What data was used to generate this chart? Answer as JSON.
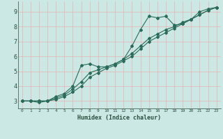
{
  "xlabel": "Humidex (Indice chaleur)",
  "bg_color": "#cce8e4",
  "grid_color": "#e8b0b0",
  "line_color": "#2a6b5a",
  "axis_color": "#2a5040",
  "xlim": [
    -0.5,
    23.5
  ],
  "ylim": [
    2.5,
    9.7
  ],
  "xticks": [
    0,
    1,
    2,
    3,
    4,
    5,
    6,
    7,
    8,
    9,
    10,
    11,
    12,
    13,
    14,
    15,
    16,
    17,
    18,
    19,
    20,
    21,
    22,
    23
  ],
  "yticks": [
    3,
    4,
    5,
    6,
    7,
    8,
    9
  ],
  "line1_x": [
    0,
    1,
    2,
    3,
    4,
    5,
    6,
    7,
    8,
    9,
    10,
    11,
    12,
    13,
    14,
    15,
    16,
    17,
    18,
    19,
    20,
    21,
    22,
    23
  ],
  "line1_y": [
    3.0,
    3.0,
    3.0,
    3.0,
    3.3,
    3.5,
    4.0,
    5.4,
    5.5,
    5.3,
    5.3,
    5.5,
    5.8,
    6.7,
    7.8,
    8.7,
    8.6,
    8.7,
    8.1,
    8.2,
    8.5,
    9.0,
    9.2,
    9.3
  ],
  "line2_x": [
    0,
    1,
    2,
    3,
    4,
    5,
    6,
    7,
    8,
    9,
    10,
    11,
    12,
    13,
    14,
    15,
    16,
    17,
    18,
    19,
    20,
    21,
    22,
    23
  ],
  "line2_y": [
    3.0,
    3.0,
    2.9,
    3.0,
    3.2,
    3.4,
    3.8,
    4.3,
    4.9,
    5.1,
    5.3,
    5.5,
    5.8,
    6.2,
    6.7,
    7.2,
    7.5,
    7.8,
    8.0,
    8.3,
    8.5,
    8.8,
    9.1,
    9.3
  ],
  "line3_x": [
    0,
    1,
    2,
    3,
    4,
    5,
    6,
    7,
    8,
    9,
    10,
    11,
    12,
    13,
    14,
    15,
    16,
    17,
    18,
    19,
    20,
    21,
    22,
    23
  ],
  "line3_y": [
    3.0,
    3.0,
    3.0,
    3.0,
    3.1,
    3.3,
    3.6,
    4.0,
    4.6,
    4.9,
    5.2,
    5.4,
    5.7,
    6.0,
    6.5,
    7.0,
    7.3,
    7.6,
    7.9,
    8.2,
    8.5,
    8.8,
    9.1,
    9.3
  ]
}
